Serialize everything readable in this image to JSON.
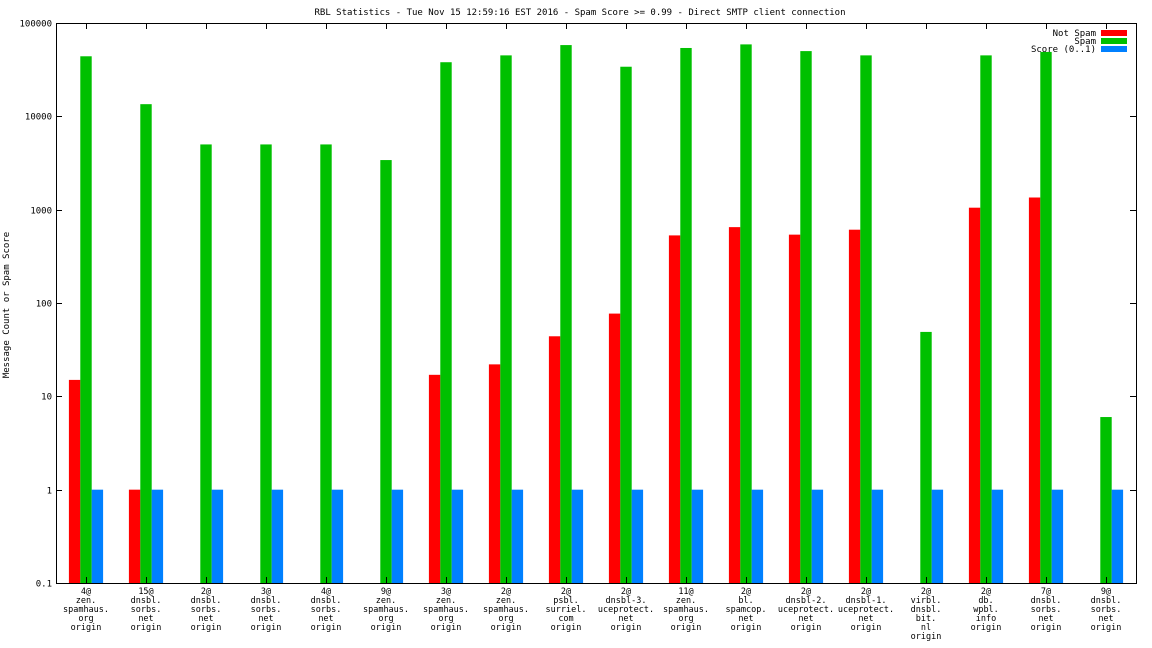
{
  "chart_data": {
    "type": "bar",
    "title": "RBL Statistics - Tue Nov 15 12:59:16 EST 2016 - Spam Score >= 0.99 - Direct SMTP client connection",
    "ylabel": "Message Count or Spam Score",
    "xlabel": "",
    "yscale": "log",
    "ylim": [
      0.1,
      100000
    ],
    "yticks": [
      "0.1",
      "1",
      "10",
      "100",
      "1000",
      "10000",
      "100000"
    ],
    "grid": false,
    "legend_position": "top-right",
    "categories": [
      [
        "4@",
        "zen.",
        "spamhaus.",
        "org",
        "origin"
      ],
      [
        "15@",
        "dnsbl.",
        "sorbs.",
        "net",
        "origin"
      ],
      [
        "2@",
        "dnsbl.",
        "sorbs.",
        "net",
        "origin"
      ],
      [
        "3@",
        "dnsbl.",
        "sorbs.",
        "net",
        "origin"
      ],
      [
        "4@",
        "dnsbl.",
        "sorbs.",
        "net",
        "origin"
      ],
      [
        "9@",
        "zen.",
        "spamhaus.",
        "org",
        "origin"
      ],
      [
        "3@",
        "zen.",
        "spamhaus.",
        "org",
        "origin"
      ],
      [
        "2@",
        "zen.",
        "spamhaus.",
        "org",
        "origin"
      ],
      [
        "2@",
        "psbl.",
        "surriel.",
        "com",
        "origin"
      ],
      [
        "2@",
        "dnsbl-3.",
        "uceprotect.",
        "net",
        "origin"
      ],
      [
        "11@",
        "zen.",
        "spamhaus.",
        "org",
        "origin"
      ],
      [
        "2@",
        "bl.",
        "spamcop.",
        "net",
        "origin"
      ],
      [
        "2@",
        "dnsbl-2.",
        "uceprotect.",
        "net",
        "origin"
      ],
      [
        "2@",
        "dnsbl-1.",
        "uceprotect.",
        "net",
        "origin"
      ],
      [
        "2@",
        "virbl.",
        "dnsbl.",
        "bit.",
        "nl",
        "origin"
      ],
      [
        "2@",
        "db.",
        "wpbl.",
        "info",
        "origin"
      ],
      [
        "7@",
        "dnsbl.",
        "sorbs.",
        "net",
        "origin"
      ],
      [
        "9@",
        "dnsbl.",
        "sorbs.",
        "net",
        "origin"
      ]
    ],
    "series": [
      {
        "name": "Not Spam",
        "color": "#ff0000",
        "values": [
          15,
          1,
          null,
          null,
          null,
          null,
          17,
          22,
          44,
          77,
          530,
          650,
          540,
          610,
          null,
          1050,
          1350,
          null
        ]
      },
      {
        "name": "Spam",
        "color": "#00c000",
        "values": [
          44000,
          13500,
          5000,
          5000,
          5000,
          3400,
          38000,
          45000,
          58000,
          34000,
          54000,
          59000,
          50000,
          45000,
          49,
          45000,
          49000,
          6
        ]
      },
      {
        "name": "Score (0..1)",
        "color": "#0080ff",
        "values": [
          1,
          1,
          1,
          1,
          1,
          1,
          1,
          1,
          1,
          1,
          1,
          1,
          1,
          1,
          1,
          1,
          1,
          1
        ]
      }
    ]
  }
}
